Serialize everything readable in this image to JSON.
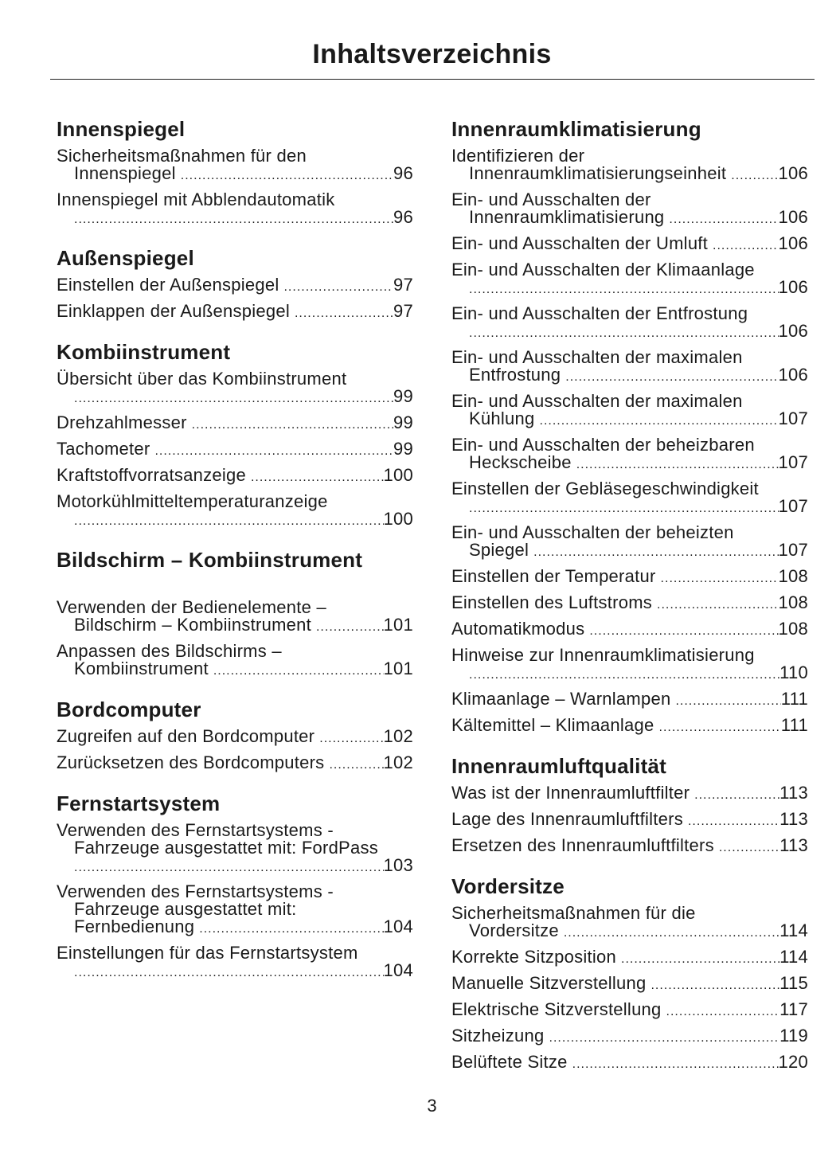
{
  "title": "Inhaltsverzeichnis",
  "page_number": "3",
  "left_column": [
    {
      "title": "Innenspiegel",
      "entries": [
        {
          "lines": [
            "Sicherheitsmaßnahmen für den",
            "Innenspiegel"
          ],
          "page": "96"
        },
        {
          "lines": [
            "Innenspiegel mit Abblendautomatik",
            ""
          ],
          "page": "96"
        }
      ]
    },
    {
      "title": "Außenspiegel",
      "entries": [
        {
          "lines": [
            "Einstellen der Außenspiegel"
          ],
          "page": "97"
        },
        {
          "lines": [
            "Einklappen der Außenspiegel"
          ],
          "page": "97"
        }
      ]
    },
    {
      "title": "Kombiinstrument",
      "entries": [
        {
          "lines": [
            "Übersicht über das Kombiinstrument",
            ""
          ],
          "page": "99"
        },
        {
          "lines": [
            "Drehzahlmesser"
          ],
          "page": "99"
        },
        {
          "lines": [
            "Tachometer"
          ],
          "page": "99"
        },
        {
          "lines": [
            "Kraftstoffvorratsanzeige"
          ],
          "page": "100"
        },
        {
          "lines": [
            "Motorkühlmitteltemperaturanzeige",
            ""
          ],
          "page": "100"
        }
      ]
    },
    {
      "title": "Bildschirm – Kombiinstrument",
      "entries": [
        {
          "lines": [
            "Verwenden der Bedienelemente –",
            "Bildschirm – Kombiinstrument"
          ],
          "page": "101"
        },
        {
          "lines": [
            "Anpassen des Bildschirms –",
            "Kombiinstrument"
          ],
          "page": "101"
        }
      ]
    },
    {
      "title": "Bordcomputer",
      "entries": [
        {
          "lines": [
            "Zugreifen auf den Bordcomputer"
          ],
          "page": "102"
        },
        {
          "lines": [
            "Zurücksetzen des Bordcomputers"
          ],
          "page": "102"
        }
      ]
    },
    {
      "title": "Fernstartsystem",
      "entries": [
        {
          "lines": [
            "Verwenden des Fernstartsystems -",
            "Fahrzeuge ausgestattet mit: FordPass",
            ""
          ],
          "page": "103"
        },
        {
          "lines": [
            "Verwenden des Fernstartsystems -",
            "Fahrzeuge ausgestattet mit:",
            "Fernbedienung"
          ],
          "page": "104"
        },
        {
          "lines": [
            "Einstellungen für das Fernstartsystem",
            ""
          ],
          "page": "104"
        }
      ]
    }
  ],
  "right_column": [
    {
      "title": "Innenraumklimatisierung",
      "entries": [
        {
          "lines": [
            "Identifizieren der",
            "Innenraumklimatisierungseinheit"
          ],
          "page": "106"
        },
        {
          "lines": [
            "Ein- und Ausschalten der",
            "Innenraumklimatisierung"
          ],
          "page": "106"
        },
        {
          "lines": [
            "Ein- und Ausschalten der Umluft"
          ],
          "page": "106"
        },
        {
          "lines": [
            "Ein- und Ausschalten der Klimaanlage",
            ""
          ],
          "page": "106"
        },
        {
          "lines": [
            "Ein- und Ausschalten der Entfrostung",
            ""
          ],
          "page": "106"
        },
        {
          "lines": [
            "Ein- und Ausschalten der maximalen",
            "Entfrostung"
          ],
          "page": "106"
        },
        {
          "lines": [
            "Ein- und Ausschalten der maximalen",
            "Kühlung"
          ],
          "page": "107"
        },
        {
          "lines": [
            "Ein- und Ausschalten der beheizbaren",
            "Heckscheibe"
          ],
          "page": "107"
        },
        {
          "lines": [
            "Einstellen der Gebläsegeschwindigkeit",
            ""
          ],
          "page": "107"
        },
        {
          "lines": [
            "Ein- und Ausschalten der beheizten",
            "Spiegel"
          ],
          "page": "107"
        },
        {
          "lines": [
            "Einstellen der Temperatur"
          ],
          "page": "108"
        },
        {
          "lines": [
            "Einstellen des Luftstroms"
          ],
          "page": "108"
        },
        {
          "lines": [
            "Automatikmodus"
          ],
          "page": "108"
        },
        {
          "lines": [
            "Hinweise zur Innenraumklimatisierung",
            ""
          ],
          "page": "110"
        },
        {
          "lines": [
            "Klimaanlage – Warnlampen"
          ],
          "page": "111"
        },
        {
          "lines": [
            "Kältemittel – Klimaanlage"
          ],
          "page": "111"
        }
      ]
    },
    {
      "title": "Innenraumluftqualität",
      "entries": [
        {
          "lines": [
            "Was ist der Innenraumluftfilter"
          ],
          "page": "113"
        },
        {
          "lines": [
            "Lage des Innenraumluftfilters"
          ],
          "page": "113"
        },
        {
          "lines": [
            "Ersetzen des Innenraumluftfilters"
          ],
          "page": "113"
        }
      ]
    },
    {
      "title": "Vordersitze",
      "entries": [
        {
          "lines": [
            "Sicherheitsmaßnahmen für die",
            "Vordersitze"
          ],
          "page": "114"
        },
        {
          "lines": [
            "Korrekte Sitzposition"
          ],
          "page": "114"
        },
        {
          "lines": [
            "Manuelle Sitzverstellung"
          ],
          "page": "115"
        },
        {
          "lines": [
            "Elektrische Sitzverstellung"
          ],
          "page": "117"
        },
        {
          "lines": [
            "Sitzheizung"
          ],
          "page": "119"
        },
        {
          "lines": [
            "Belüftete Sitze"
          ],
          "page": "120"
        }
      ]
    }
  ]
}
